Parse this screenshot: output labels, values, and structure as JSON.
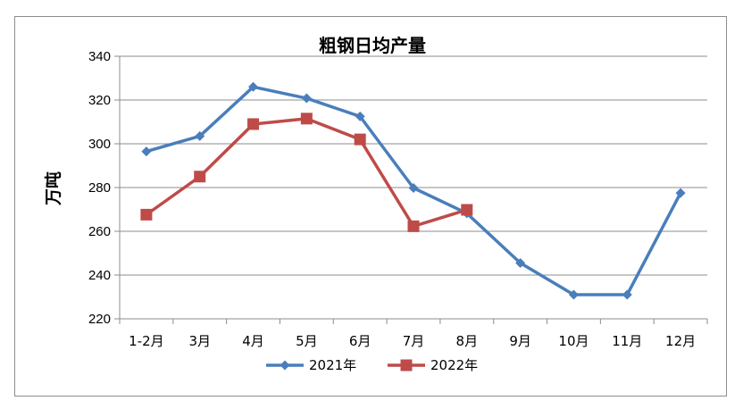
{
  "chart_data": {
    "type": "line",
    "title": "粗钢日均产量",
    "xlabel": "",
    "ylabel": "万吨",
    "categories": [
      "1-2月",
      "3月",
      "4月",
      "5月",
      "6月",
      "7月",
      "8月",
      "9月",
      "10月",
      "11月",
      "12月"
    ],
    "ylim": [
      220,
      340
    ],
    "yticks": [
      220,
      240,
      260,
      280,
      300,
      320,
      340
    ],
    "grid": true,
    "legend": "bottom",
    "series": [
      {
        "name": "2021年",
        "color": "#4a7ebb",
        "marker": "diamond",
        "values": [
          296.5,
          303.5,
          326,
          320.8,
          312.5,
          279.8,
          268.2,
          245.5,
          231,
          231,
          277.5
        ]
      },
      {
        "name": "2022年",
        "color": "#be4b48",
        "marker": "square",
        "values": [
          267.6,
          285,
          309,
          311.5,
          302,
          262.3,
          269.8,
          null,
          null,
          null,
          null
        ]
      }
    ]
  }
}
